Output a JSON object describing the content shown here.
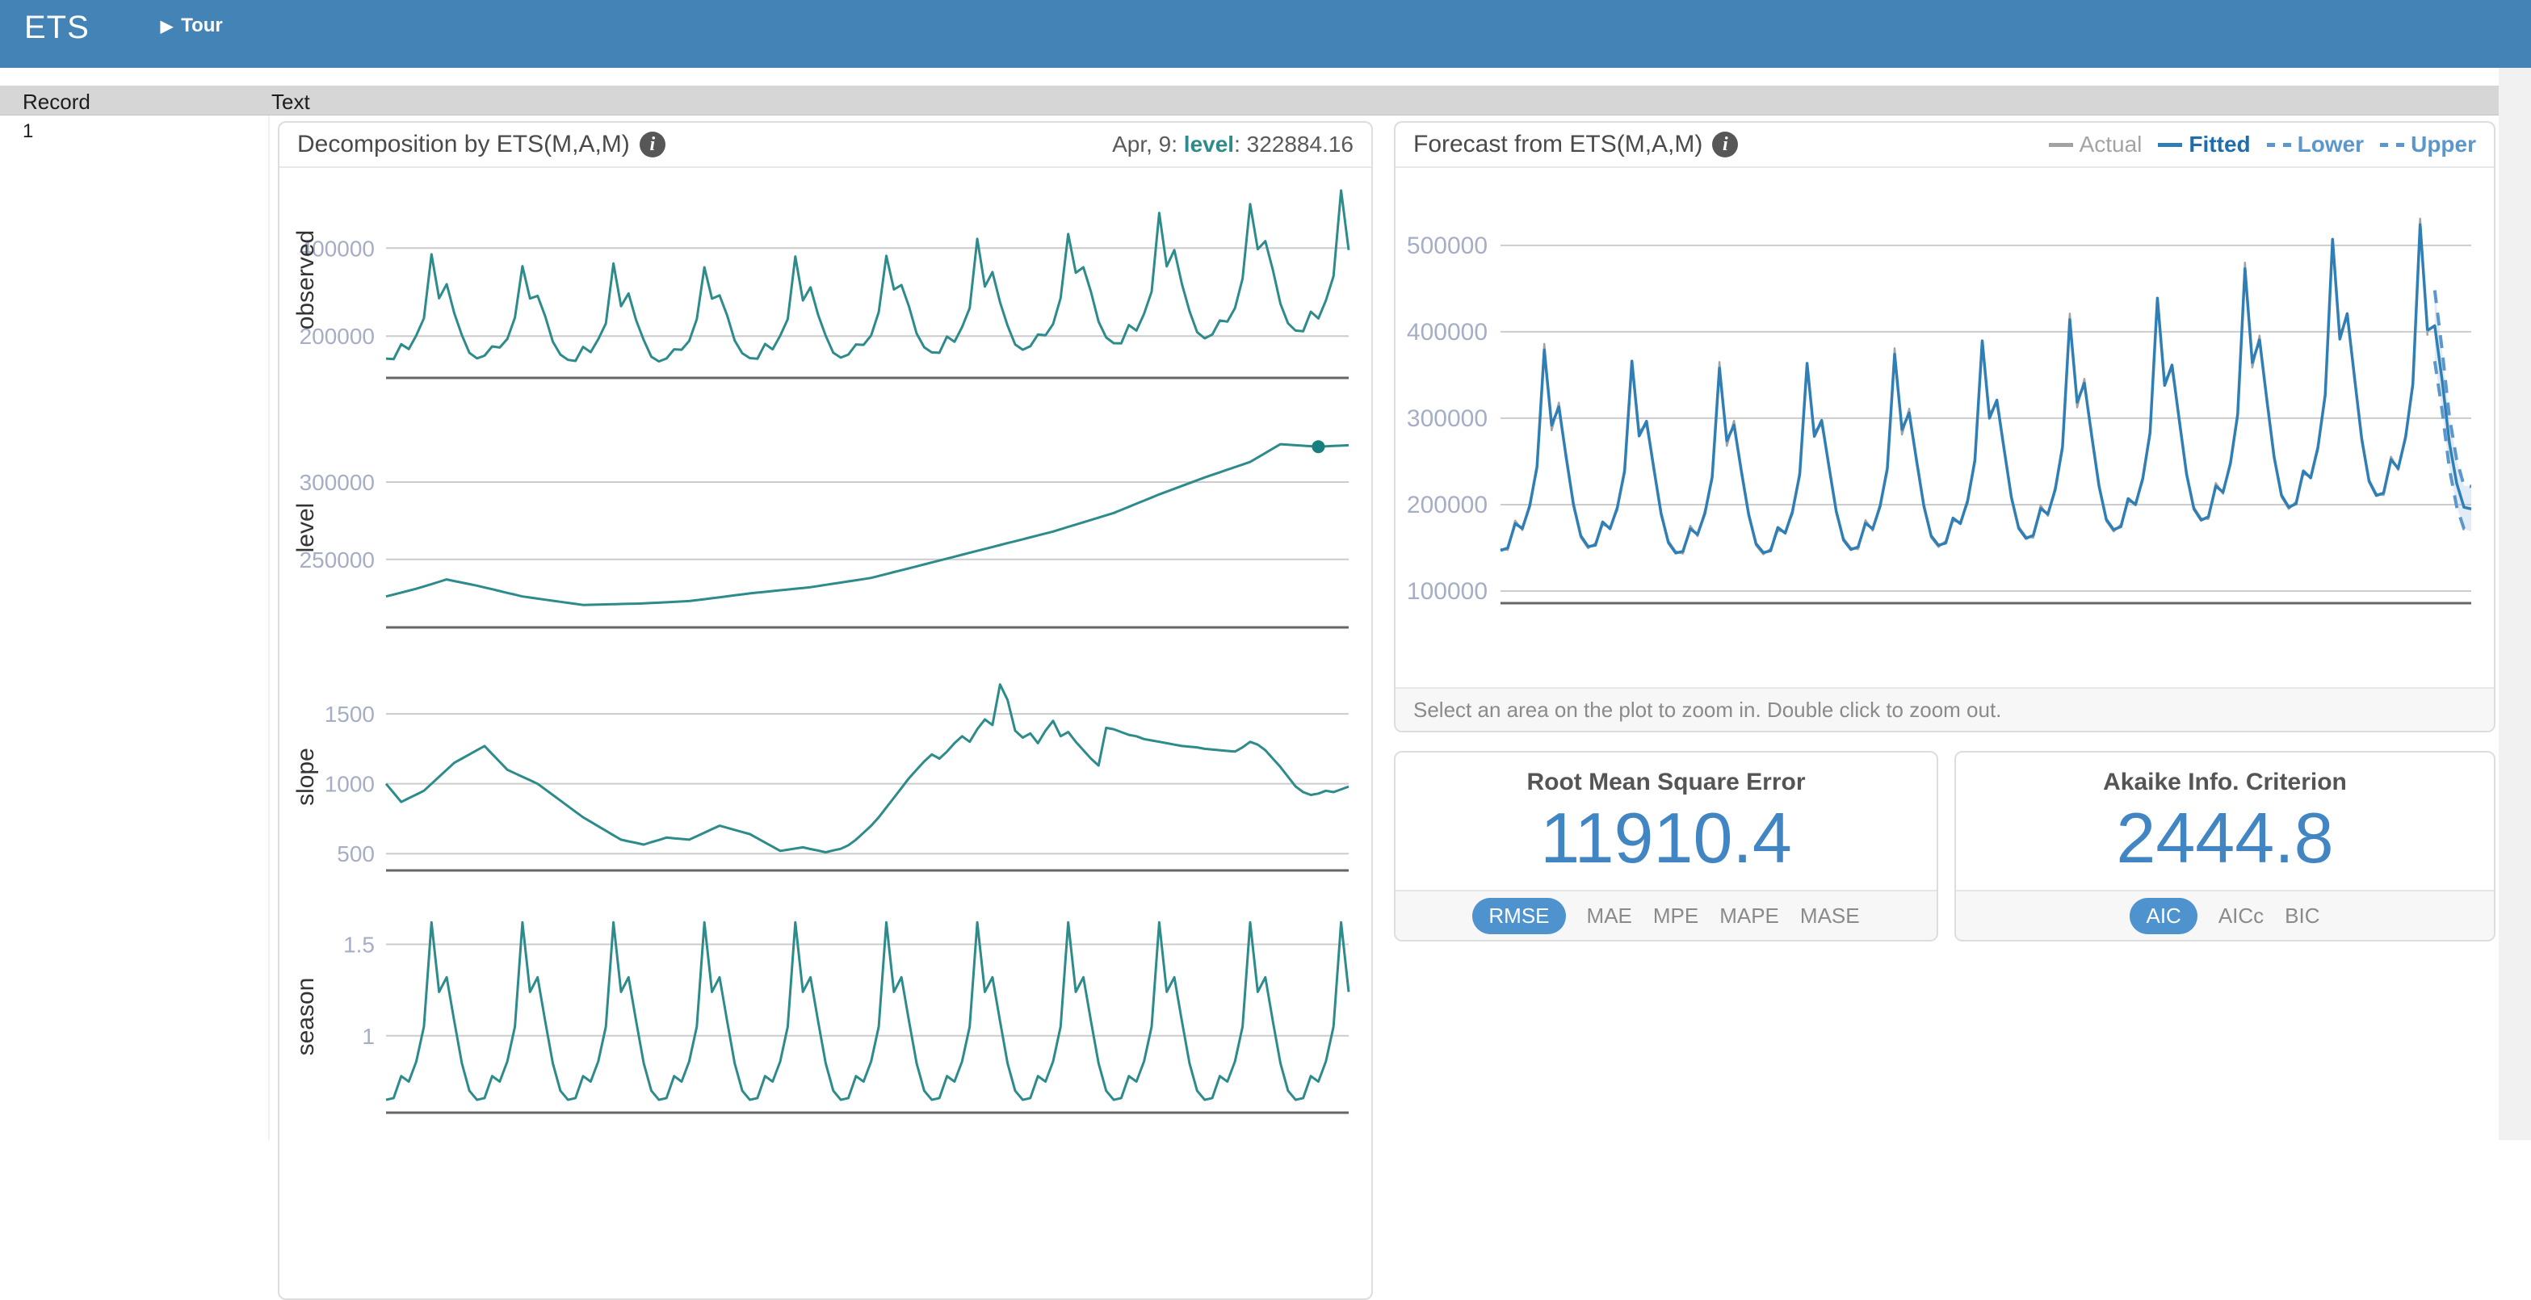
{
  "navbar": {
    "brand": "ETS",
    "tour_label": "Tour"
  },
  "table": {
    "headers": [
      "Record",
      "Text"
    ],
    "rows": [
      {
        "record": "1"
      }
    ]
  },
  "ui": {
    "zoom_hint": "Select an area on the plot to zoom in. Double click to zoom out.",
    "metrics": {
      "rmse": {
        "title": "Root Mean Square Error",
        "value": "11910.4",
        "options": [
          "RMSE",
          "MAE",
          "MPE",
          "MAPE",
          "MASE"
        ],
        "active": "RMSE"
      },
      "aic": {
        "title": "Akaike Info. Criterion",
        "value": "2444.8",
        "options": [
          "AIC",
          "AICc",
          "BIC"
        ],
        "active": "AIC"
      }
    },
    "colors": {
      "navbar": "#4383b5",
      "teal": "#2e8b8b",
      "teal_dark": "#17807f",
      "grid": "#cccccc",
      "axis": "#666666",
      "tick": "#a5aec5",
      "actual": "#a3a3a3",
      "fitted": "#2f7eb6",
      "ci": "#5b97cd",
      "band": "rgba(120,170,215,0.22)",
      "accent": "#4285c3",
      "pill": "#4f93ce"
    }
  },
  "chart_data": [
    {
      "id": "decomposition",
      "type": "line",
      "title": "Decomposition by ETS(M,A,M)",
      "x_start": "1999-01",
      "x_freq": "monthly",
      "n": 128,
      "grid": true,
      "highlight": {
        "panel": "level",
        "index": 123,
        "value": 322884.16,
        "date": "Apr, 9: ",
        "series": "level",
        "value_label": ": 322884.16"
      },
      "panels": [
        {
          "name": "observed",
          "ylim": [
            105000,
            551000
          ],
          "ticks": [
            {
              "v": 400000,
              "label": "400000"
            },
            {
              "v": 200000,
              "label": "200000"
            }
          ]
        },
        {
          "name": "level",
          "ylim": [
            206000,
            335000
          ],
          "ticks": [
            {
              "v": 300000,
              "label": "300000"
            },
            {
              "v": 250000,
              "label": "250000"
            }
          ]
        },
        {
          "name": "slope",
          "ylim": [
            380,
            1720
          ],
          "ticks": [
            {
              "v": 1500,
              "label": "1500"
            },
            {
              "v": 1000,
              "label": "1000"
            },
            {
              "v": 500,
              "label": "500"
            }
          ]
        },
        {
          "name": "season",
          "ylim": [
            0.58,
            1.63
          ],
          "ticks": [
            {
              "v": 1.5,
              "label": "1.5"
            },
            {
              "v": 1,
              "label": "1"
            }
          ]
        }
      ],
      "series": {
        "observed": [
          148900,
          147500,
          181500,
          170500,
          201500,
          240500,
          386000,
          286000,
          318000,
          252000,
          202250,
          162000,
          149500,
          155500,
          176500,
          174000,
          193500,
          242000,
          359000,
          285500,
          291500,
          245000,
          187500,
          158000,
          146000,
          143500,
          175500,
          163500,
          193000,
          228500,
          365000,
          268000,
          297000,
          236000,
          191000,
          153000,
          142500,
          149000,
          170000,
          169000,
          189000,
          238500,
          356500,
          285000,
          292500,
          247000,
          190000,
          161000,
          150000,
          148500,
          182000,
          170000,
          201000,
          238500,
          381000,
          281000,
          311000,
          248500,
          201000,
          162000,
          151000,
          158000,
          181000,
          180000,
          201500,
          254500,
          382500,
          306000,
          316000,
          267000,
          206000,
          174500,
          163000,
          162000,
          199000,
          187000,
          220500,
          263500,
          421000,
          312500,
          345500,
          277000,
          224000,
          181000,
          169000,
          177000,
          203500,
          202000,
          227500,
          286500,
          432000,
          344000,
          356500,
          300500,
          233000,
          197000,
          184000,
          183500,
          225000,
          212500,
          250500,
          301000,
          480000,
          358500,
          395500,
          318500,
          257000,
          209000,
          195000,
          203500,
          235500,
          233000,
          263500,
          330500,
          500000,
          397500,
          416000,
          350500,
          273500,
          229000,
          212500,
          211000,
          255500,
          240000,
          281000,
          336000,
          531000,
          395500
        ],
        "level": [
          226000,
          227250,
          228500,
          229750,
          231000,
          232500,
          234000,
          235500,
          237000,
          236000,
          235000,
          234000,
          233000,
          231800,
          230700,
          229500,
          228300,
          227200,
          226000,
          225300,
          224600,
          223900,
          223250,
          222550,
          221875,
          221190,
          220500,
          220625,
          220750,
          220875,
          221000,
          221125,
          221250,
          221375,
          221500,
          221750,
          222000,
          222250,
          222500,
          222750,
          223000,
          223625,
          224250,
          224875,
          225500,
          226125,
          226750,
          227375,
          228000,
          228500,
          229000,
          229500,
          230000,
          230500,
          231000,
          231500,
          232000,
          232750,
          233500,
          234250,
          235000,
          235750,
          236500,
          237250,
          238000,
          239250,
          240500,
          241750,
          243000,
          244250,
          245500,
          246750,
          248000,
          249250,
          250500,
          251750,
          253000,
          254250,
          255500,
          256750,
          258000,
          259250,
          260500,
          261750,
          263000,
          264250,
          265500,
          266750,
          268000,
          269500,
          271000,
          272500,
          274000,
          275500,
          277000,
          278500,
          280000,
          282000,
          284000,
          286000,
          288000,
          290000,
          292000,
          293833,
          295667,
          297500,
          299333,
          301167,
          303000,
          304667,
          306333,
          308000,
          309667,
          311333,
          313000,
          315875,
          318750,
          321625,
          324500,
          324167,
          323833,
          323500,
          323192,
          322884,
          323113,
          323342,
          323571,
          323800
        ],
        "slope": [
          1000,
          935,
          870,
          897,
          923,
          950,
          1000,
          1050,
          1100,
          1150,
          1180,
          1210,
          1240,
          1270,
          1213,
          1157,
          1100,
          1075,
          1050,
          1025,
          1000,
          960,
          920,
          880,
          840,
          800,
          760,
          728,
          696,
          664,
          632,
          600,
          588,
          577,
          565,
          582,
          598,
          615,
          610,
          605,
          600,
          625,
          650,
          675,
          700,
          685,
          670,
          655,
          640,
          610,
          580,
          550,
          520,
          528,
          537,
          545,
          533,
          522,
          510,
          523,
          535,
          560,
          600,
          650,
          700,
          760,
          830,
          900,
          970,
          1040,
          1100,
          1160,
          1210,
          1180,
          1230,
          1290,
          1340,
          1300,
          1390,
          1460,
          1420,
          1710,
          1600,
          1380,
          1330,
          1360,
          1290,
          1380,
          1450,
          1340,
          1370,
          1300,
          1240,
          1180,
          1130,
          1400,
          1390,
          1370,
          1350,
          1340,
          1320,
          1310,
          1300,
          1290,
          1280,
          1270,
          1265,
          1260,
          1250,
          1245,
          1240,
          1235,
          1230,
          1260,
          1300,
          1280,
          1240,
          1180,
          1120,
          1050,
          980,
          940,
          920,
          930,
          950,
          940,
          960,
          980
        ],
        "season": [
          0.65,
          0.66,
          0.78,
          0.75,
          0.86,
          1.05,
          1.62,
          1.24,
          1.32,
          1.08,
          0.85,
          0.7,
          0.65,
          0.66,
          0.78,
          0.75,
          0.86,
          1.05,
          1.62,
          1.24,
          1.32,
          1.08,
          0.85,
          0.7,
          0.65,
          0.66,
          0.78,
          0.75,
          0.86,
          1.05,
          1.62,
          1.24,
          1.32,
          1.08,
          0.85,
          0.7,
          0.65,
          0.66,
          0.78,
          0.75,
          0.86,
          1.05,
          1.62,
          1.24,
          1.32,
          1.08,
          0.85,
          0.7,
          0.65,
          0.66,
          0.78,
          0.75,
          0.86,
          1.05,
          1.62,
          1.24,
          1.32,
          1.08,
          0.85,
          0.7,
          0.65,
          0.66,
          0.78,
          0.75,
          0.86,
          1.05,
          1.62,
          1.24,
          1.32,
          1.08,
          0.85,
          0.7,
          0.65,
          0.66,
          0.78,
          0.75,
          0.86,
          1.05,
          1.62,
          1.24,
          1.32,
          1.08,
          0.85,
          0.7,
          0.65,
          0.66,
          0.78,
          0.75,
          0.86,
          1.05,
          1.62,
          1.24,
          1.32,
          1.08,
          0.85,
          0.7,
          0.65,
          0.66,
          0.78,
          0.75,
          0.86,
          1.05,
          1.62,
          1.24,
          1.32,
          1.08,
          0.85,
          0.7,
          0.65,
          0.66,
          0.78,
          0.75,
          0.86,
          1.05,
          1.62,
          1.24,
          1.32,
          1.08,
          0.85,
          0.7,
          0.65,
          0.66,
          0.78,
          0.75,
          0.86,
          1.05,
          1.62,
          1.24
        ]
      }
    },
    {
      "id": "forecast",
      "type": "line",
      "title": "Forecast from ETS(M,A,M)",
      "ylim": [
        86000,
        569000
      ],
      "grid": true,
      "legend_position": "top-right",
      "legend": [
        {
          "label": "Actual",
          "style": "solid",
          "color": "#a3a3a3"
        },
        {
          "label": "Fitted",
          "style": "solid",
          "color": "#2f7eb6"
        },
        {
          "label": "Lower",
          "style": "dashed",
          "color": "#5b97cd"
        },
        {
          "label": "Upper",
          "style": "dashed",
          "color": "#5b97cd"
        }
      ],
      "ticks": [
        {
          "v": 500000,
          "label": "500000"
        },
        {
          "v": 400000,
          "label": "400000"
        },
        {
          "v": 300000,
          "label": "300000"
        },
        {
          "v": 200000,
          "label": "200000"
        },
        {
          "v": 100000,
          "label": "100000"
        }
      ],
      "actual_series_ref": "decomposition.observed",
      "series": {
        "fitted": [
          146900,
          150000,
          178000,
          172500,
          198500,
          244000,
          379000,
          292000,
          313000,
          255000,
          199750,
          164000,
          151500,
          153000,
          180000,
          172000,
          196500,
          238500,
          366000,
          279500,
          296500,
          242000,
          190000,
          156000,
          144000,
          146000,
          172000,
          165500,
          190000,
          232000,
          358000,
          274000,
          292000,
          239000,
          188500,
          155000,
          144500,
          146500,
          173500,
          167000,
          192000,
          235000,
          363500,
          279000,
          297500,
          244000,
          192500,
          159000,
          148000,
          151000,
          178500,
          172000,
          198000,
          242000,
          374000,
          287000,
          306000,
          251500,
          198500,
          164000,
          153000,
          155500,
          184500,
          178000,
          204500,
          251000,
          389500,
          300000,
          321000,
          264000,
          208500,
          172500,
          161000,
          164500,
          195500,
          189000,
          217500,
          267000,
          414000,
          318500,
          340500,
          280000,
          221500,
          183000,
          171000,
          174500,
          207000,
          200000,
          230500,
          283000,
          439000,
          338000,
          361500,
          297500,
          235500,
          195000,
          182000,
          186000,
          221500,
          214500,
          247500,
          304500,
          473000,
          364500,
          390500,
          321500,
          254500,
          211000,
          197000,
          201000,
          239000,
          231000,
          266500,
          327000,
          507000,
          391500,
          421000,
          347500,
          276000,
          227000,
          210500,
          213500,
          252000,
          242000,
          278000,
          339500,
          524000,
          401500
        ],
        "forecast_mean": [
          407000,
          345000,
          272000,
          225000,
          197000,
          195000
        ],
        "forecast_upper": [
          448000,
          380000,
          302000,
          252000,
          222000,
          221000
        ],
        "forecast_lower": [
          366000,
          310000,
          242000,
          198000,
          172000,
          169000
        ]
      }
    }
  ]
}
